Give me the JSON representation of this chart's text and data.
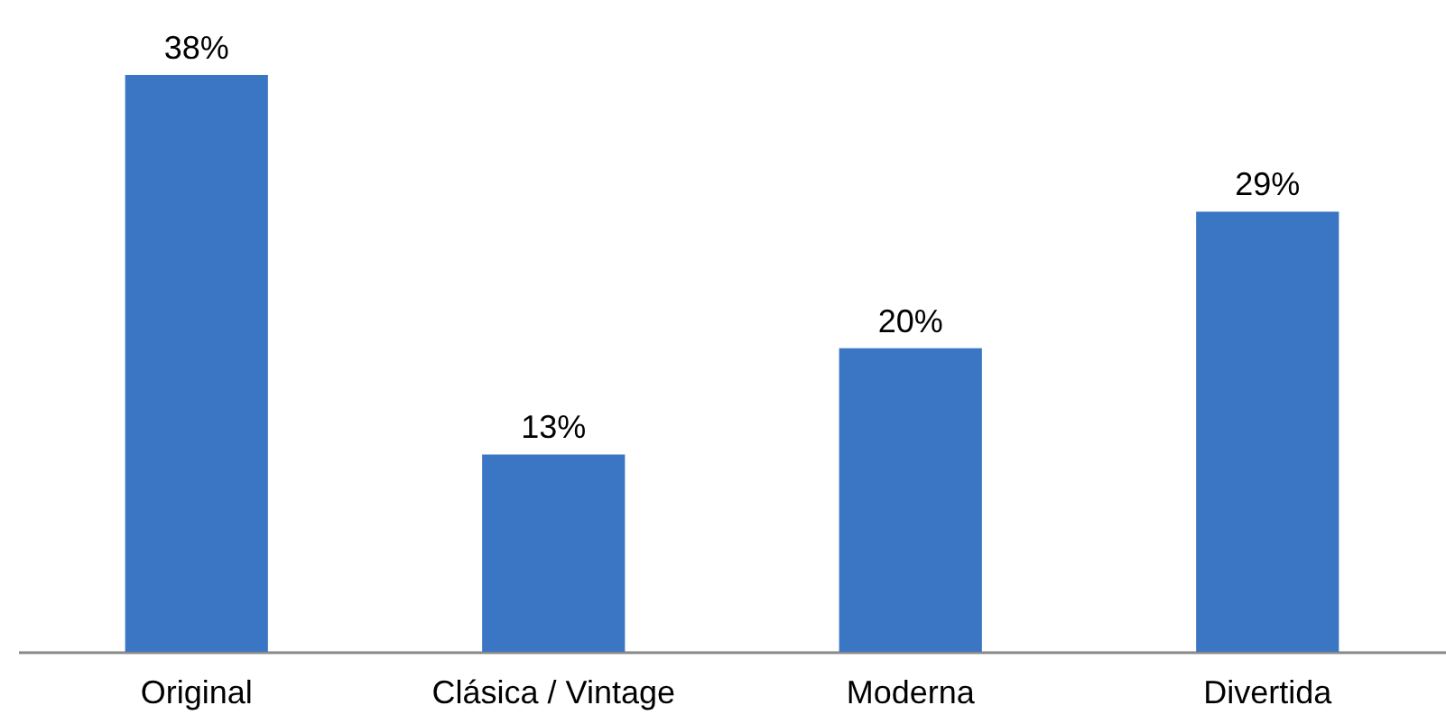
{
  "chart_data": {
    "type": "bar",
    "categories": [
      "Original",
      "Clásica / Vintage",
      "Moderna",
      "Divertida"
    ],
    "values": [
      38,
      13,
      20,
      29
    ],
    "value_labels": [
      "38%",
      "13%",
      "20%",
      "29%"
    ],
    "color": "#3a76c4"
  }
}
